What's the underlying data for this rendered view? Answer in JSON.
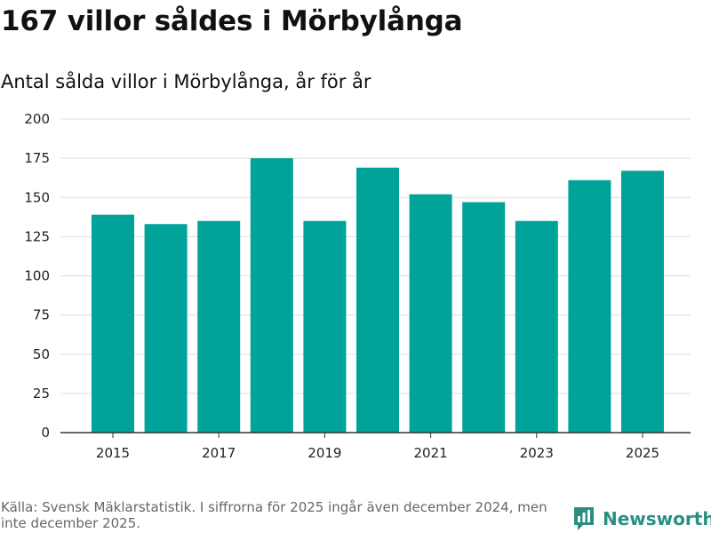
{
  "header": {
    "title": "167 villor såldes i Mörbylånga",
    "subtitle": "Antal sålda villor i Mörbylånga, år för år"
  },
  "chart_data": {
    "type": "bar",
    "title": "167 villor såldes i Mörbylånga",
    "subtitle": "Antal sålda villor i Mörbylånga, år för år",
    "xlabel": "",
    "ylabel": "",
    "categories": [
      "2015",
      "2016",
      "2017",
      "2018",
      "2019",
      "2020",
      "2021",
      "2022",
      "2023",
      "2024",
      "2025"
    ],
    "values": [
      139,
      133,
      135,
      175,
      135,
      169,
      152,
      147,
      135,
      161,
      167
    ],
    "x_tick_labels": [
      "2015",
      "2017",
      "2019",
      "2021",
      "2023",
      "2025"
    ],
    "y_ticks": [
      0,
      25,
      50,
      75,
      100,
      125,
      150,
      175,
      200
    ],
    "ylim": [
      0,
      200
    ],
    "grid": true,
    "bar_color": "#00a39a"
  },
  "footer": {
    "source": "Källa: Svensk Mäklarstatistik. I siffrorna för 2025 ingår även december 2024, men inte december 2025.",
    "brand": "Newsworthy",
    "brand_color": "#2a8f81"
  }
}
